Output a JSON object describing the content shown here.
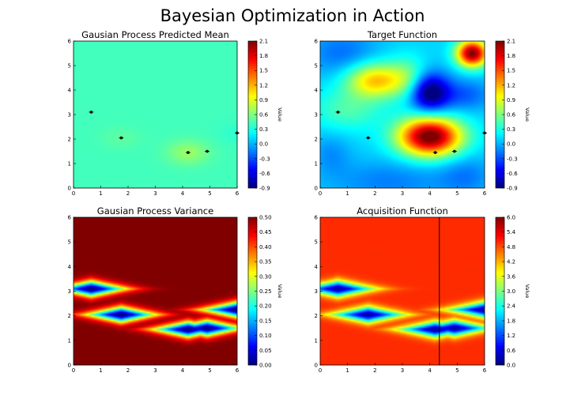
{
  "figure": {
    "title": "Bayesian Optimization in Action"
  },
  "colors": {
    "jet": [
      "#00007f",
      "#0000ff",
      "#007fff",
      "#00ffff",
      "#7fff7f",
      "#ffff00",
      "#ff7f00",
      "#ff0000",
      "#7f0000"
    ],
    "marker": "#000000"
  },
  "chart_data": [
    {
      "type": "heatmap",
      "title": "Gausian Process Predicted Mean",
      "colorbar_label": "Value",
      "xlim": [
        0,
        6
      ],
      "ylim": [
        0,
        6
      ],
      "x_ticks": [
        "0",
        "1",
        "2",
        "3",
        "4",
        "5",
        "6"
      ],
      "y_ticks": [
        "0",
        "1",
        "2",
        "3",
        "4",
        "5",
        "6"
      ],
      "cbar_range": [
        -0.9,
        2.1
      ],
      "cbar_ticks": [
        "2.1",
        "1.8",
        "1.5",
        "1.2",
        "0.9",
        "0.6",
        "0.3",
        "0.0",
        "-0.3",
        "-0.6",
        "-0.9"
      ],
      "field": "mean",
      "observations": [
        [
          0.65,
          3.1
        ],
        [
          1.75,
          2.05
        ],
        [
          4.2,
          1.45
        ],
        [
          4.9,
          1.5
        ],
        [
          6.0,
          2.25
        ]
      ]
    },
    {
      "type": "heatmap",
      "title": "Target Function",
      "colorbar_label": "Value",
      "xlim": [
        0,
        6
      ],
      "ylim": [
        0,
        6
      ],
      "x_ticks": [
        "0",
        "1",
        "2",
        "3",
        "4",
        "5",
        "6"
      ],
      "y_ticks": [
        "0",
        "1",
        "2",
        "3",
        "4",
        "5",
        "6"
      ],
      "cbar_range": [
        -0.9,
        2.1
      ],
      "cbar_ticks": [
        "2.1",
        "1.8",
        "1.5",
        "1.2",
        "0.9",
        "0.6",
        "0.3",
        "0.0",
        "-0.3",
        "-0.6",
        "-0.9"
      ],
      "field": "target",
      "observations": [
        [
          0.65,
          3.1
        ],
        [
          1.75,
          2.05
        ],
        [
          4.2,
          1.45
        ],
        [
          4.9,
          1.5
        ],
        [
          6.0,
          2.25
        ]
      ]
    },
    {
      "type": "heatmap",
      "title": "Gausian Process Variance",
      "colorbar_label": "Value",
      "xlim": [
        0,
        6
      ],
      "ylim": [
        0,
        6
      ],
      "x_ticks": [
        "0",
        "1",
        "2",
        "3",
        "4",
        "5",
        "6"
      ],
      "y_ticks": [
        "0",
        "1",
        "2",
        "3",
        "4",
        "5",
        "6"
      ],
      "cbar_range": [
        0.0,
        0.5
      ],
      "cbar_ticks": [
        "0.50",
        "0.45",
        "0.40",
        "0.35",
        "0.30",
        "0.25",
        "0.20",
        "0.15",
        "0.10",
        "0.05",
        "0.00"
      ],
      "field": "variance",
      "observations": [
        [
          0.65,
          3.1
        ],
        [
          1.75,
          2.05
        ],
        [
          4.2,
          1.45
        ],
        [
          4.9,
          1.5
        ],
        [
          6.0,
          2.25
        ]
      ]
    },
    {
      "type": "heatmap",
      "title": "Acquisition Function",
      "colorbar_label": "Value",
      "xlim": [
        0,
        6
      ],
      "ylim": [
        0,
        6
      ],
      "x_ticks": [
        "0",
        "1",
        "2",
        "3",
        "4",
        "5",
        "6"
      ],
      "y_ticks": [
        "0",
        "1",
        "2",
        "3",
        "4",
        "5",
        "6"
      ],
      "cbar_range": [
        0.0,
        6.0
      ],
      "cbar_ticks": [
        "6.0",
        "5.4",
        "4.8",
        "4.2",
        "3.6",
        "3.0",
        "2.4",
        "1.8",
        "1.2",
        "0.6",
        "0.0"
      ],
      "field": "acquisition",
      "vline_x": 4.35,
      "observations": [
        [
          0.65,
          3.1
        ],
        [
          1.75,
          2.05
        ],
        [
          4.2,
          1.45
        ],
        [
          4.9,
          1.5
        ],
        [
          6.0,
          2.25
        ]
      ]
    }
  ]
}
